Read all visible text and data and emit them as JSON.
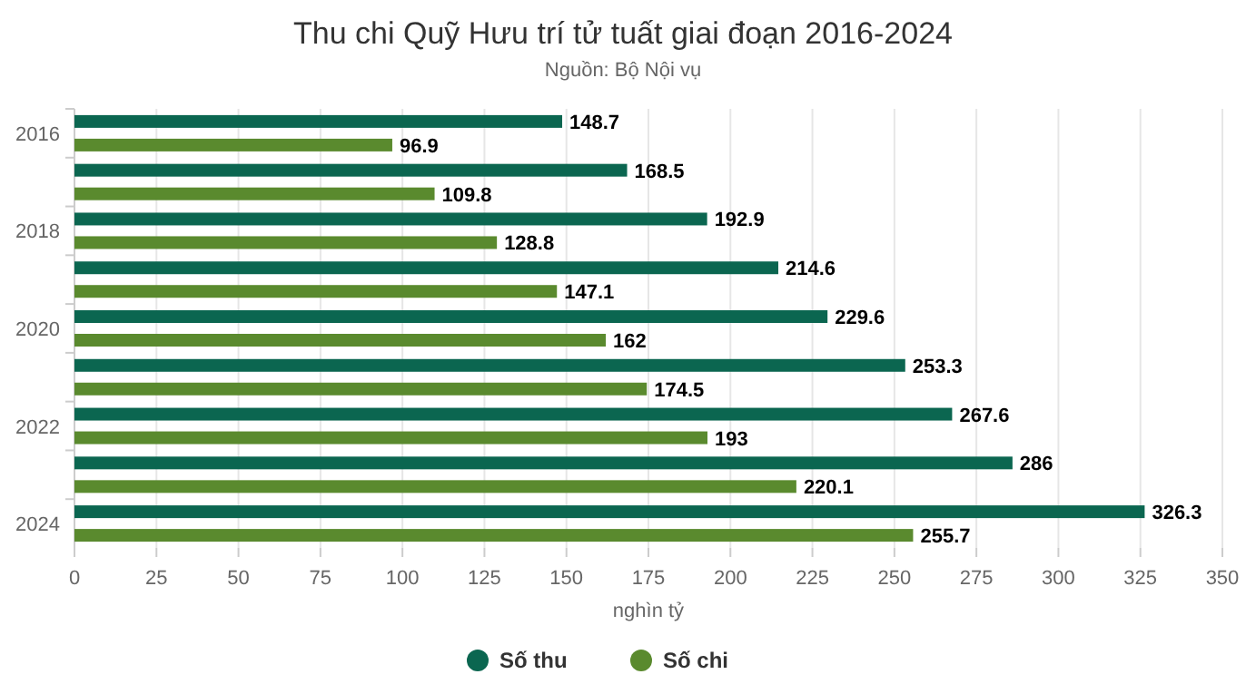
{
  "chart_data": {
    "type": "bar",
    "orientation": "horizontal",
    "title": "Thu chi Quỹ Hưu trí tử tuất giai đoạn 2016-2024",
    "subtitle": "Nguồn: Bộ Nội vụ",
    "xlabel": "nghìn tỷ",
    "categories": [
      "2016",
      null,
      "2018",
      null,
      "2020",
      null,
      "2022",
      null,
      "2024"
    ],
    "series": [
      {
        "name": "Số thu",
        "color": "#0b6650",
        "values": [
          148.7,
          168.5,
          192.9,
          214.6,
          229.6,
          253.3,
          267.6,
          286,
          326.3
        ]
      },
      {
        "name": "Số chi",
        "color": "#5a8a2e",
        "values": [
          96.9,
          109.8,
          128.8,
          147.1,
          162,
          174.5,
          193,
          220.1,
          255.7
        ]
      }
    ],
    "xlim": [
      0,
      350
    ],
    "xticks": [
      0,
      25,
      50,
      75,
      100,
      125,
      150,
      175,
      200,
      225,
      250,
      275,
      300,
      325,
      350
    ],
    "grid": "x",
    "legend": "bottom",
    "data_labels": true
  }
}
